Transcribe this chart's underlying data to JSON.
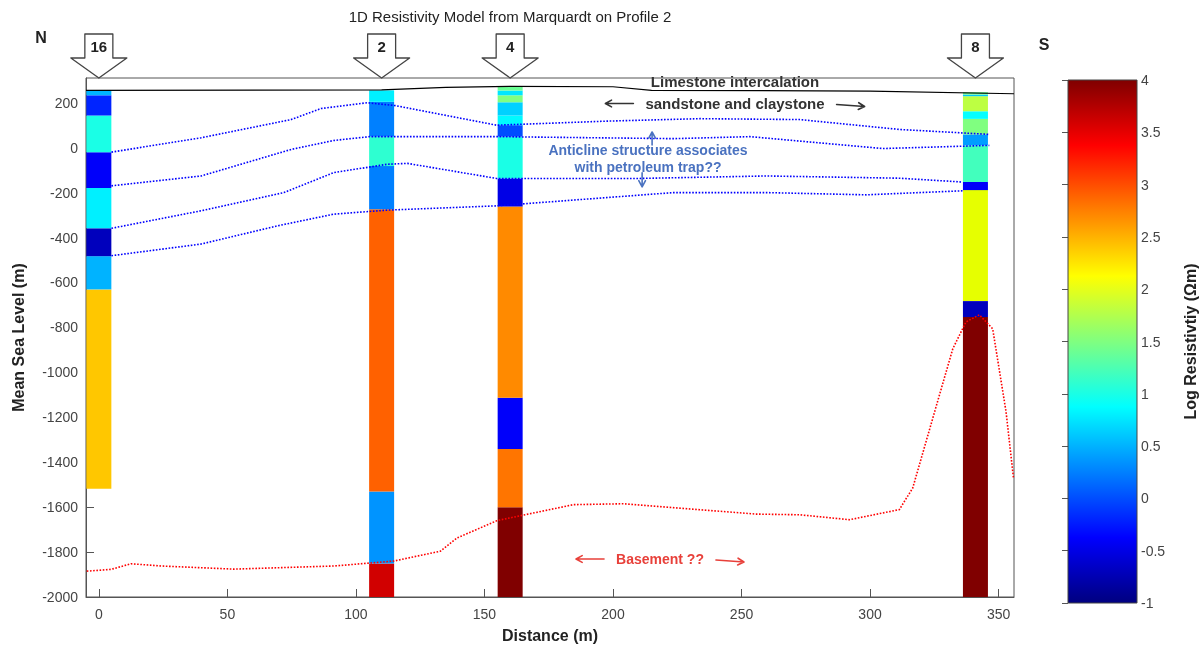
{
  "chart_data": {
    "type": "bar",
    "title": "1D Resistivity Model from Marquardt on Profile 2",
    "xlabel": "Distance (m)",
    "ylabel": "Mean Sea Level (m)",
    "clabel": "Log Resistivtiy (Ωm)",
    "xlim": [
      -5,
      356
    ],
    "xticks": [
      0,
      50,
      100,
      150,
      200,
      250,
      300,
      350
    ],
    "ylim": [
      -2000,
      310
    ],
    "yticks": [
      -2000,
      -1800,
      -1600,
      -1400,
      -1200,
      -1000,
      -800,
      -600,
      -400,
      -200,
      0,
      200
    ],
    "clim": [
      -1,
      4
    ],
    "cticks": [
      -1,
      -0.5,
      0,
      0.5,
      1,
      1.5,
      2,
      2.5,
      3,
      3.5,
      4
    ],
    "x": [
      0,
      110,
      160,
      341
    ],
    "series": [
      {
        "base": [
          -1518,
          -2000,
          -2000,
          -2000
        ],
        "values": [
          887,
          149,
          400,
          1246
        ],
        "colors": [
          "#ffc700",
          "#d10000",
          "#800000",
          "#800000"
        ]
      },
      {
        "base": [
          -631,
          -1851,
          -1600,
          -754
        ],
        "values": [
          148,
          321,
          259,
          71
        ],
        "colors": [
          "#00b3ff",
          "#0094ff",
          "#ff7500",
          "#0000bd"
        ]
      },
      {
        "base": [
          -483,
          -1530,
          -1341,
          -683
        ],
        "values": [
          124,
          1256,
          228,
          494
        ],
        "colors": [
          "#0000bd",
          "#ff6100",
          "#0000fa",
          "#e6ff00"
        ]
      },
      {
        "base": [
          -359,
          -274,
          -1113,
          -189
        ],
        "values": [
          179,
          192,
          851,
          36
        ],
        "colors": [
          "#00f0ff",
          "#0080ff",
          "#ff8a00",
          "#0000fa"
        ]
      },
      {
        "base": [
          -180,
          -82,
          -262,
          -153
        ],
        "values": [
          160,
          131,
          125,
          163
        ],
        "colors": [
          "#0000fa",
          "#2effd1",
          "#0000e6",
          "#42ffbd"
        ]
      },
      {
        "base": [
          -20,
          49,
          -137,
          10
        ],
        "values": [
          163,
          155,
          186,
          49
        ],
        "colors": [
          "#1affe6",
          "#0080ff",
          "#1affe6",
          "#009eff"
        ]
      },
      {
        "base": [
          143,
          204,
          49,
          59
        ],
        "values": [
          90,
          51,
          51,
          69
        ],
        "colors": [
          "#0024ff",
          "#00f0ff",
          "#004dff",
          "#80ff80"
        ]
      },
      {
        "base": [
          233,
          null,
          100,
          128
        ],
        "values": [
          22,
          null,
          43,
          34
        ],
        "colors": [
          "#00b3ff",
          null,
          "#00faff",
          "#05ffff"
        ]
      },
      {
        "base": [
          null,
          null,
          143,
          162
        ],
        "values": [
          null,
          null,
          59,
          67
        ],
        "colors": [
          null,
          null,
          "#00d1ff",
          "#bdff42"
        ]
      },
      {
        "base": [
          null,
          null,
          202,
          229
        ],
        "values": [
          null,
          null,
          31,
          7
        ],
        "colors": [
          null,
          null,
          "#80ff80",
          "#00c7ff"
        ]
      },
      {
        "base": [
          null,
          null,
          233,
          236
        ],
        "values": [
          null,
          null,
          21,
          11
        ],
        "colors": [
          null,
          null,
          "#00e6ff",
          "#6bff94"
        ]
      },
      {
        "base": [
          null,
          null,
          254,
          null
        ],
        "values": [
          null,
          null,
          19,
          null
        ],
        "colors": [
          null,
          null,
          "#6bff94",
          null
        ]
      },
      {
        "type": "line",
        "color": "#000000",
        "line_style": "solid",
        "x": [
          -5,
          110,
          135,
          160,
          200,
          215,
          300,
          356
        ],
        "values": [
          255,
          257,
          268,
          273,
          271,
          255,
          252,
          240
        ]
      },
      {
        "type": "line",
        "color": "#0000ff",
        "line_style": "dotted",
        "x": [
          4.9,
          39.8,
          74.8,
          86.4,
          104.4,
          115.4,
          133,
          154.7,
          197.5,
          233.8,
          272.6,
          311.4,
          346.4
        ],
        "values": [
          -20,
          44,
          125,
          174,
          200,
          187,
          148,
          100,
          118,
          129,
          125,
          81,
          59
        ]
      },
      {
        "type": "line",
        "color": "#0000ff",
        "line_style": "dotted",
        "x": [
          4.9,
          39.8,
          74.8,
          91.4,
          105.4,
          115.4,
          154.7,
          223.5,
          253.3,
          305,
          346.4
        ],
        "values": [
          -170,
          -126,
          -8,
          32,
          49,
          49,
          49,
          40,
          49,
          -4,
          10
        ]
      },
      {
        "type": "line",
        "color": "#0000ff",
        "line_style": "dotted",
        "x": [
          4.9,
          39.8,
          72,
          91.4,
          112.2,
          120,
          154.7,
          210.5,
          259.7,
          311.4,
          336
        ],
        "values": [
          -359,
          -281,
          -200,
          -111,
          -74,
          -70,
          -137,
          -137,
          -126,
          -136,
          -153
        ]
      },
      {
        "type": "line",
        "color": "#0000ff",
        "line_style": "dotted",
        "x": [
          4.9,
          39.8,
          69.5,
          91.4,
          112.2,
          154.7,
          223.5,
          259.7,
          298.5,
          336
        ],
        "values": [
          -481,
          -429,
          -348,
          -296,
          -278,
          -259,
          -200,
          -200,
          -210,
          -192
        ]
      },
      {
        "type": "line",
        "color": "#ff0000",
        "line_style": "dotted",
        "x": [
          -4.7,
          4.8,
          12.5,
          24.2,
          52.6,
          91.5,
          114.8,
          132.9,
          139.4,
          154.9,
          184.6,
          204,
          255.8,
          272.6,
          292,
          311.4,
          316.6,
          327,
          332.2,
          337.3,
          342.5,
          347.7,
          352.9,
          355.8
        ],
        "values": [
          -1885,
          -1877,
          -1852,
          -1862,
          -1876,
          -1862,
          -1840,
          -1796,
          -1737,
          -1660,
          -1589,
          -1585,
          -1631,
          -1634,
          -1656,
          -1611,
          -1515,
          -1101,
          -895,
          -776,
          -744,
          -806,
          -1175,
          -1471
        ]
      }
    ],
    "annotations": [
      "N",
      "S",
      "16",
      "2",
      "4",
      "8",
      "Limestone intercalation",
      "sandstone and claystone",
      "Anticline structure associates\nwith petroleum trap??",
      "Basement ??"
    ]
  }
}
